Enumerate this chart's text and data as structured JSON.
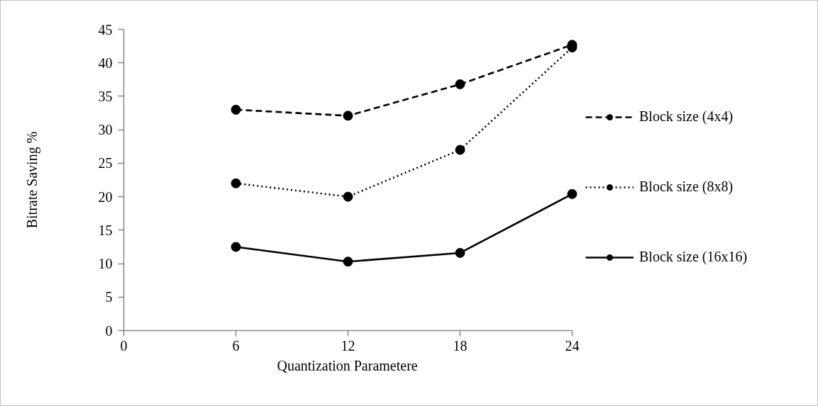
{
  "chart_data": {
    "type": "line",
    "xlabel": "Quantization Parametere",
    "ylabel": "Bitrate Saving %",
    "x": [
      6,
      12,
      18,
      24
    ],
    "xlim": [
      0,
      24
    ],
    "xticks": [
      0,
      6,
      12,
      18,
      24
    ],
    "ylim": [
      0,
      45
    ],
    "yticks": [
      0,
      5,
      10,
      15,
      20,
      25,
      30,
      35,
      40,
      45
    ],
    "grid": false,
    "legend": "right",
    "marker": "circle",
    "series": [
      {
        "name": "Block size (4x4)",
        "color": "#000000",
        "line_style": "dashed",
        "values": [
          33.0,
          32.1,
          36.8,
          42.7
        ]
      },
      {
        "name": "Block size (8x8)",
        "color": "#000000",
        "line_style": "dotted",
        "values": [
          22.0,
          20.0,
          27.0,
          42.3
        ]
      },
      {
        "name": "Block size (16x16)",
        "color": "#000000",
        "line_style": "solid",
        "values": [
          12.5,
          10.3,
          11.6,
          20.4
        ]
      }
    ]
  }
}
